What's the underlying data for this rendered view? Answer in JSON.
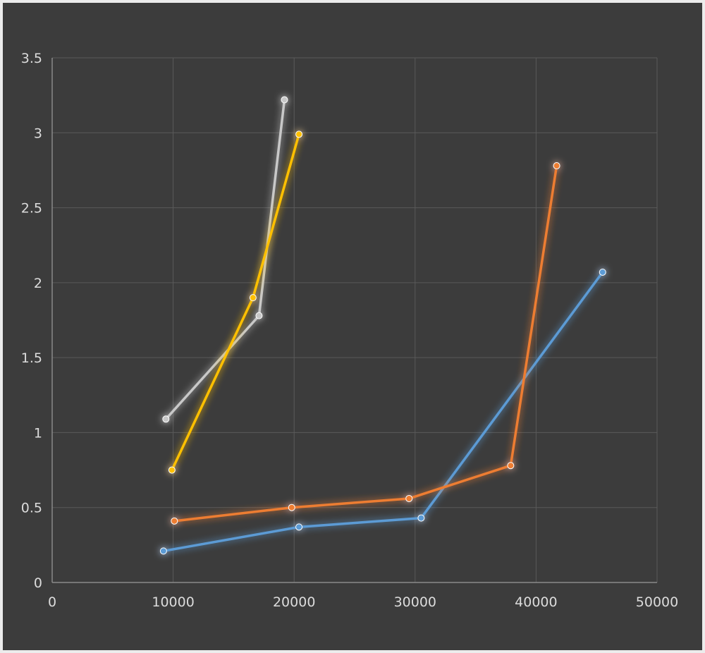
{
  "chart_data": {
    "type": "scatter",
    "title": "",
    "xlabel": "",
    "ylabel": "",
    "xlim": [
      0,
      50000
    ],
    "ylim": [
      0,
      3.5
    ],
    "grid": true,
    "legend": "none",
    "x_ticks": [
      "0",
      "10000",
      "20000",
      "30000",
      "40000",
      "50000"
    ],
    "y_ticks": [
      "0",
      "0.5",
      "1",
      "1.5",
      "2",
      "2.5",
      "3",
      "3.5"
    ],
    "series": [
      {
        "color": "#5b9bd5",
        "points": [
          [
            9200,
            0.21
          ],
          [
            20400,
            0.37
          ],
          [
            30500,
            0.43
          ],
          [
            45500,
            2.07
          ]
        ]
      },
      {
        "color": "#ed7d31",
        "points": [
          [
            10100,
            0.41
          ],
          [
            19800,
            0.5
          ],
          [
            29500,
            0.56
          ],
          [
            37900,
            0.78
          ],
          [
            41700,
            2.78
          ]
        ]
      },
      {
        "color": "#c8c8c8",
        "points": [
          [
            9400,
            1.09
          ],
          [
            17100,
            1.78
          ],
          [
            19200,
            3.22
          ]
        ]
      },
      {
        "color": "#ffc000",
        "points": [
          [
            9900,
            0.75
          ],
          [
            16600,
            1.9
          ],
          [
            20400,
            2.99
          ]
        ]
      }
    ]
  }
}
